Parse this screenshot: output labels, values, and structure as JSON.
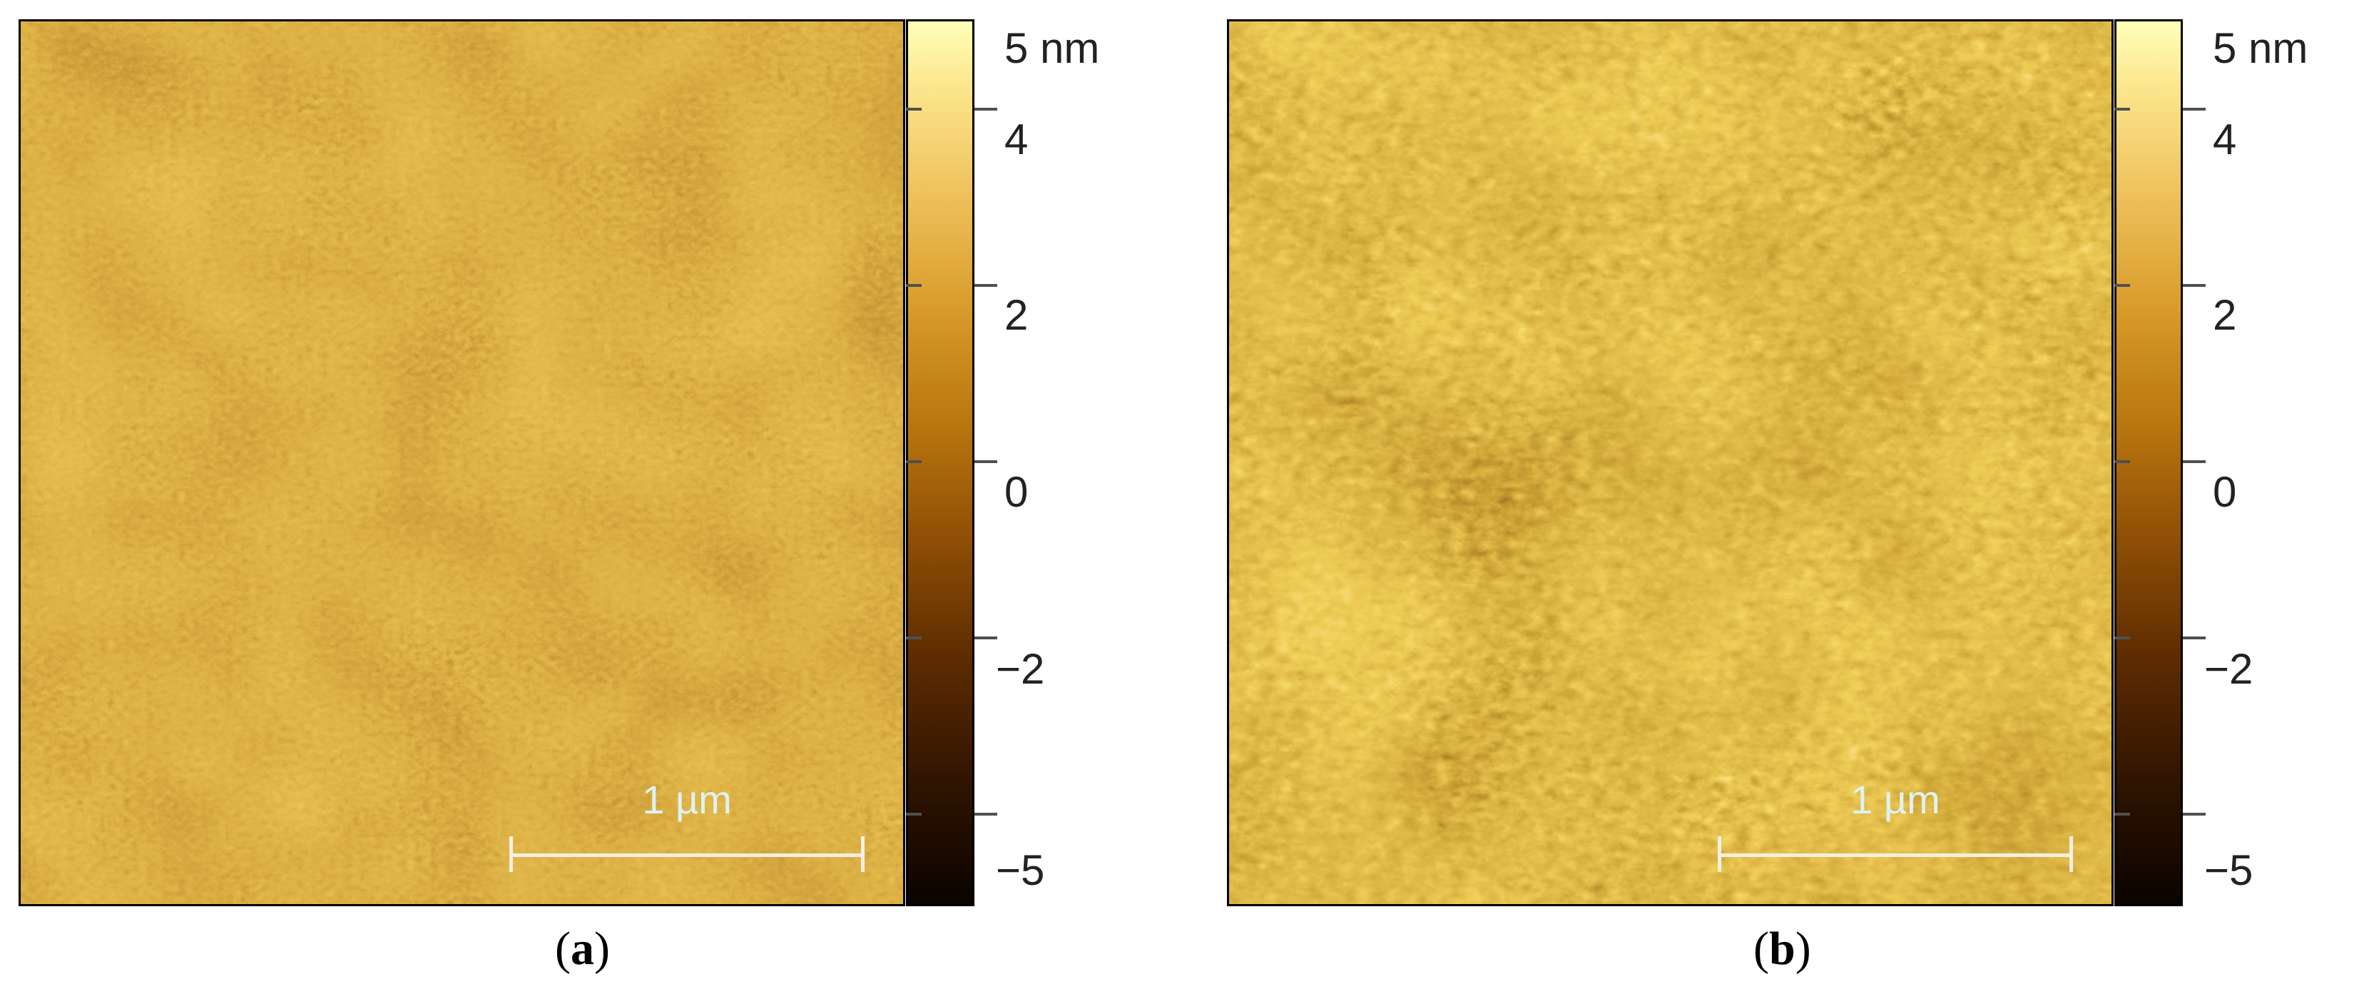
{
  "figure": {
    "panels": [
      {
        "id": "a",
        "caption_open": "(",
        "caption_letter": "a",
        "caption_close": ")",
        "scale_bar_label": "1 µm",
        "colorbar_labels": [
          "5 nm",
          "4",
          "2",
          "0",
          "−2",
          "−5"
        ],
        "colorbar_low_color": "#0a0300",
        "colorbar_high_color": "#ffffb8"
      },
      {
        "id": "b",
        "caption_open": "(",
        "caption_letter": "b",
        "caption_close": ")",
        "scale_bar_label": "1 µm",
        "colorbar_labels": [
          "5 nm",
          "4",
          "2",
          "0",
          "−2",
          "−5"
        ],
        "colorbar_low_color": "#0a0300",
        "colorbar_high_color": "#ffffb8"
      }
    ]
  }
}
